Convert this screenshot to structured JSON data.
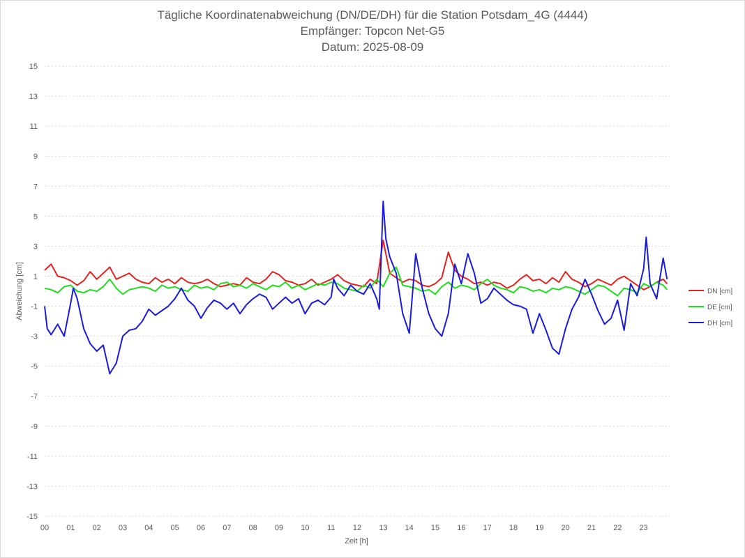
{
  "chart_data": {
    "type": "line",
    "title": "Tägliche Koordinatenabweichung (DN/DE/DH) für die Station Potsdam_4G (4444)",
    "subtitle_lines": [
      "Empfänger: Topcon Net-G5",
      "Datum: 2025-08-09"
    ],
    "xlabel": "Zeit [h]",
    "ylabel": "Abweichung [cm]",
    "xlim": [
      0,
      24
    ],
    "ylim": [
      -15,
      15
    ],
    "x_ticks": [
      "00",
      "01",
      "02",
      "03",
      "04",
      "05",
      "06",
      "07",
      "08",
      "09",
      "10",
      "11",
      "12",
      "13",
      "14",
      "15",
      "16",
      "17",
      "18",
      "19",
      "20",
      "21",
      "22",
      "23"
    ],
    "y_ticks": [
      15,
      13,
      11,
      9,
      7,
      5,
      3,
      1,
      -1,
      -3,
      -5,
      -7,
      -9,
      -11,
      -13,
      -15
    ],
    "grid": "horizontal-dashed",
    "legend_position": "right",
    "x_unit": "hours",
    "series": [
      {
        "name": "DN [cm]",
        "color": "#e8201e",
        "points": [
          [
            0.0,
            1.4
          ],
          [
            0.25,
            1.8
          ],
          [
            0.5,
            1.0
          ],
          [
            0.75,
            0.9
          ],
          [
            1.0,
            0.7
          ],
          [
            1.25,
            0.4
          ],
          [
            1.5,
            0.7
          ],
          [
            1.75,
            1.3
          ],
          [
            2.0,
            0.8
          ],
          [
            2.25,
            1.2
          ],
          [
            2.5,
            1.6
          ],
          [
            2.75,
            0.8
          ],
          [
            3.0,
            1.0
          ],
          [
            3.25,
            1.2
          ],
          [
            3.5,
            0.8
          ],
          [
            3.75,
            0.6
          ],
          [
            4.0,
            0.5
          ],
          [
            4.25,
            0.9
          ],
          [
            4.5,
            0.6
          ],
          [
            4.75,
            0.8
          ],
          [
            5.0,
            0.5
          ],
          [
            5.25,
            0.9
          ],
          [
            5.5,
            0.6
          ],
          [
            5.75,
            0.5
          ],
          [
            6.0,
            0.6
          ],
          [
            6.25,
            0.8
          ],
          [
            6.5,
            0.5
          ],
          [
            6.75,
            0.3
          ],
          [
            7.0,
            0.4
          ],
          [
            7.25,
            0.5
          ],
          [
            7.5,
            0.4
          ],
          [
            7.75,
            0.9
          ],
          [
            8.0,
            0.6
          ],
          [
            8.25,
            0.5
          ],
          [
            8.5,
            0.8
          ],
          [
            8.75,
            1.3
          ],
          [
            9.0,
            1.1
          ],
          [
            9.25,
            0.7
          ],
          [
            9.5,
            0.6
          ],
          [
            9.75,
            0.4
          ],
          [
            10.0,
            0.5
          ],
          [
            10.25,
            0.8
          ],
          [
            10.5,
            0.4
          ],
          [
            10.75,
            0.6
          ],
          [
            11.0,
            0.8
          ],
          [
            11.25,
            1.1
          ],
          [
            11.5,
            0.7
          ],
          [
            11.75,
            0.5
          ],
          [
            12.0,
            0.4
          ],
          [
            12.25,
            0.3
          ],
          [
            12.5,
            0.8
          ],
          [
            12.75,
            0.5
          ],
          [
            13.0,
            3.4
          ],
          [
            13.25,
            1.2
          ],
          [
            13.5,
            0.9
          ],
          [
            13.75,
            0.6
          ],
          [
            14.0,
            0.8
          ],
          [
            14.25,
            0.7
          ],
          [
            14.5,
            0.4
          ],
          [
            14.75,
            0.3
          ],
          [
            15.0,
            0.5
          ],
          [
            15.25,
            0.9
          ],
          [
            15.5,
            2.6
          ],
          [
            15.75,
            1.4
          ],
          [
            16.0,
            1.0
          ],
          [
            16.25,
            0.8
          ],
          [
            16.5,
            0.5
          ],
          [
            16.75,
            0.6
          ],
          [
            17.0,
            0.4
          ],
          [
            17.25,
            0.6
          ],
          [
            17.5,
            0.5
          ],
          [
            17.75,
            0.2
          ],
          [
            18.0,
            0.4
          ],
          [
            18.25,
            0.8
          ],
          [
            18.5,
            1.1
          ],
          [
            18.75,
            0.7
          ],
          [
            19.0,
            0.8
          ],
          [
            19.25,
            0.5
          ],
          [
            19.5,
            0.9
          ],
          [
            19.75,
            0.6
          ],
          [
            20.0,
            1.3
          ],
          [
            20.25,
            0.8
          ],
          [
            20.5,
            0.6
          ],
          [
            20.75,
            0.3
          ],
          [
            21.0,
            0.5
          ],
          [
            21.25,
            0.8
          ],
          [
            21.5,
            0.6
          ],
          [
            21.75,
            0.4
          ],
          [
            22.0,
            0.8
          ],
          [
            22.25,
            1.0
          ],
          [
            22.5,
            0.7
          ],
          [
            22.75,
            0.4
          ],
          [
            23.0,
            0.1
          ],
          [
            23.25,
            0.3
          ],
          [
            23.5,
            0.6
          ],
          [
            23.75,
            0.8
          ],
          [
            23.9,
            0.5
          ]
        ]
      },
      {
        "name": "DE [cm]",
        "color": "#1edf1e",
        "points": [
          [
            0.0,
            0.2
          ],
          [
            0.25,
            0.1
          ],
          [
            0.5,
            -0.1
          ],
          [
            0.75,
            0.3
          ],
          [
            1.0,
            0.4
          ],
          [
            1.25,
            0.0
          ],
          [
            1.5,
            -0.1
          ],
          [
            1.75,
            0.1
          ],
          [
            2.0,
            0.0
          ],
          [
            2.25,
            0.3
          ],
          [
            2.5,
            0.8
          ],
          [
            2.75,
            0.2
          ],
          [
            3.0,
            -0.2
          ],
          [
            3.25,
            0.1
          ],
          [
            3.5,
            0.2
          ],
          [
            3.75,
            0.3
          ],
          [
            4.0,
            0.2
          ],
          [
            4.25,
            0.0
          ],
          [
            4.5,
            0.4
          ],
          [
            4.75,
            0.2
          ],
          [
            5.0,
            0.3
          ],
          [
            5.25,
            0.1
          ],
          [
            5.5,
            0.0
          ],
          [
            5.75,
            0.4
          ],
          [
            6.0,
            0.2
          ],
          [
            6.25,
            0.3
          ],
          [
            6.5,
            0.1
          ],
          [
            6.75,
            0.5
          ],
          [
            7.0,
            0.6
          ],
          [
            7.25,
            0.3
          ],
          [
            7.5,
            0.4
          ],
          [
            7.75,
            0.2
          ],
          [
            8.0,
            0.5
          ],
          [
            8.25,
            0.3
          ],
          [
            8.5,
            0.1
          ],
          [
            8.75,
            0.4
          ],
          [
            9.0,
            0.3
          ],
          [
            9.25,
            0.6
          ],
          [
            9.5,
            0.2
          ],
          [
            9.75,
            0.4
          ],
          [
            10.0,
            0.1
          ],
          [
            10.25,
            0.3
          ],
          [
            10.5,
            0.5
          ],
          [
            10.75,
            0.4
          ],
          [
            11.0,
            0.6
          ],
          [
            11.25,
            0.5
          ],
          [
            11.5,
            0.2
          ],
          [
            11.75,
            0.1
          ],
          [
            12.0,
            0.0
          ],
          [
            12.25,
            0.4
          ],
          [
            12.5,
            0.2
          ],
          [
            12.75,
            0.8
          ],
          [
            13.0,
            0.3
          ],
          [
            13.25,
            1.2
          ],
          [
            13.5,
            1.6
          ],
          [
            13.75,
            0.4
          ],
          [
            14.0,
            0.3
          ],
          [
            14.25,
            0.2
          ],
          [
            14.5,
            0.0
          ],
          [
            14.75,
            0.1
          ],
          [
            15.0,
            -0.2
          ],
          [
            15.25,
            0.3
          ],
          [
            15.5,
            0.6
          ],
          [
            15.75,
            0.2
          ],
          [
            16.0,
            0.4
          ],
          [
            16.25,
            0.3
          ],
          [
            16.5,
            0.1
          ],
          [
            16.75,
            0.5
          ],
          [
            17.0,
            0.8
          ],
          [
            17.25,
            0.4
          ],
          [
            17.5,
            0.2
          ],
          [
            17.75,
            0.1
          ],
          [
            18.0,
            -0.1
          ],
          [
            18.25,
            0.3
          ],
          [
            18.5,
            0.2
          ],
          [
            18.75,
            0.0
          ],
          [
            19.0,
            0.1
          ],
          [
            19.25,
            -0.1
          ],
          [
            19.5,
            0.2
          ],
          [
            19.75,
            0.1
          ],
          [
            20.0,
            0.3
          ],
          [
            20.25,
            0.2
          ],
          [
            20.5,
            0.0
          ],
          [
            20.75,
            -0.2
          ],
          [
            21.0,
            0.1
          ],
          [
            21.25,
            0.4
          ],
          [
            21.5,
            0.3
          ],
          [
            21.75,
            0.0
          ],
          [
            22.0,
            -0.3
          ],
          [
            22.25,
            0.2
          ],
          [
            22.5,
            0.1
          ],
          [
            22.75,
            -0.1
          ],
          [
            23.0,
            0.5
          ],
          [
            23.25,
            0.3
          ],
          [
            23.5,
            0.6
          ],
          [
            23.75,
            0.4
          ],
          [
            23.9,
            0.1
          ]
        ]
      },
      {
        "name": "DH [cm]",
        "color": "#1a1ae0",
        "points": [
          [
            0.0,
            -1.0
          ],
          [
            0.1,
            -2.5
          ],
          [
            0.25,
            -2.9
          ],
          [
            0.5,
            -2.2
          ],
          [
            0.75,
            -3.0
          ],
          [
            1.0,
            -0.8
          ],
          [
            1.1,
            0.2
          ],
          [
            1.25,
            -0.5
          ],
          [
            1.5,
            -2.5
          ],
          [
            1.75,
            -3.5
          ],
          [
            2.0,
            -4.0
          ],
          [
            2.25,
            -3.6
          ],
          [
            2.5,
            -5.5
          ],
          [
            2.75,
            -4.8
          ],
          [
            3.0,
            -3.0
          ],
          [
            3.25,
            -2.6
          ],
          [
            3.5,
            -2.5
          ],
          [
            3.75,
            -2.0
          ],
          [
            4.0,
            -1.2
          ],
          [
            4.25,
            -1.6
          ],
          [
            4.5,
            -1.3
          ],
          [
            4.75,
            -1.0
          ],
          [
            5.0,
            -0.5
          ],
          [
            5.25,
            0.2
          ],
          [
            5.5,
            -0.6
          ],
          [
            5.75,
            -1.0
          ],
          [
            6.0,
            -1.8
          ],
          [
            6.25,
            -1.1
          ],
          [
            6.5,
            -0.6
          ],
          [
            6.75,
            -0.8
          ],
          [
            7.0,
            -1.2
          ],
          [
            7.25,
            -0.8
          ],
          [
            7.5,
            -1.5
          ],
          [
            7.75,
            -0.9
          ],
          [
            8.0,
            -0.5
          ],
          [
            8.25,
            -0.2
          ],
          [
            8.5,
            -0.4
          ],
          [
            8.75,
            -1.2
          ],
          [
            9.0,
            -0.8
          ],
          [
            9.25,
            -0.4
          ],
          [
            9.5,
            -0.8
          ],
          [
            9.75,
            -0.5
          ],
          [
            10.0,
            -1.5
          ],
          [
            10.25,
            -0.8
          ],
          [
            10.5,
            -0.6
          ],
          [
            10.75,
            -0.9
          ],
          [
            11.0,
            -0.4
          ],
          [
            11.1,
            0.8
          ],
          [
            11.25,
            0.2
          ],
          [
            11.5,
            -0.3
          ],
          [
            11.75,
            0.4
          ],
          [
            12.0,
            0.0
          ],
          [
            12.25,
            -0.2
          ],
          [
            12.5,
            0.5
          ],
          [
            12.75,
            -0.5
          ],
          [
            12.85,
            -1.2
          ],
          [
            13.0,
            6.0
          ],
          [
            13.1,
            3.5
          ],
          [
            13.25,
            2.3
          ],
          [
            13.5,
            1.2
          ],
          [
            13.75,
            -1.5
          ],
          [
            14.0,
            -2.8
          ],
          [
            14.25,
            2.5
          ],
          [
            14.5,
            0.2
          ],
          [
            14.75,
            -1.5
          ],
          [
            15.0,
            -2.5
          ],
          [
            15.25,
            -3.0
          ],
          [
            15.5,
            -1.5
          ],
          [
            15.75,
            1.8
          ],
          [
            16.0,
            0.5
          ],
          [
            16.25,
            2.5
          ],
          [
            16.5,
            1.2
          ],
          [
            16.75,
            -0.8
          ],
          [
            17.0,
            -0.5
          ],
          [
            17.25,
            0.2
          ],
          [
            17.5,
            -0.2
          ],
          [
            17.75,
            -0.6
          ],
          [
            18.0,
            -0.9
          ],
          [
            18.25,
            -1.0
          ],
          [
            18.5,
            -1.2
          ],
          [
            18.75,
            -2.8
          ],
          [
            19.0,
            -1.5
          ],
          [
            19.25,
            -2.6
          ],
          [
            19.5,
            -3.8
          ],
          [
            19.75,
            -4.2
          ],
          [
            20.0,
            -2.5
          ],
          [
            20.25,
            -1.2
          ],
          [
            20.5,
            -0.4
          ],
          [
            20.75,
            0.8
          ],
          [
            21.0,
            -0.2
          ],
          [
            21.25,
            -1.3
          ],
          [
            21.5,
            -2.2
          ],
          [
            21.75,
            -1.8
          ],
          [
            22.0,
            -0.6
          ],
          [
            22.25,
            -2.6
          ],
          [
            22.5,
            0.5
          ],
          [
            22.75,
            -0.3
          ],
          [
            23.0,
            1.5
          ],
          [
            23.1,
            3.6
          ],
          [
            23.25,
            0.5
          ],
          [
            23.5,
            -0.5
          ],
          [
            23.75,
            2.2
          ],
          [
            23.9,
            0.8
          ]
        ]
      }
    ]
  }
}
